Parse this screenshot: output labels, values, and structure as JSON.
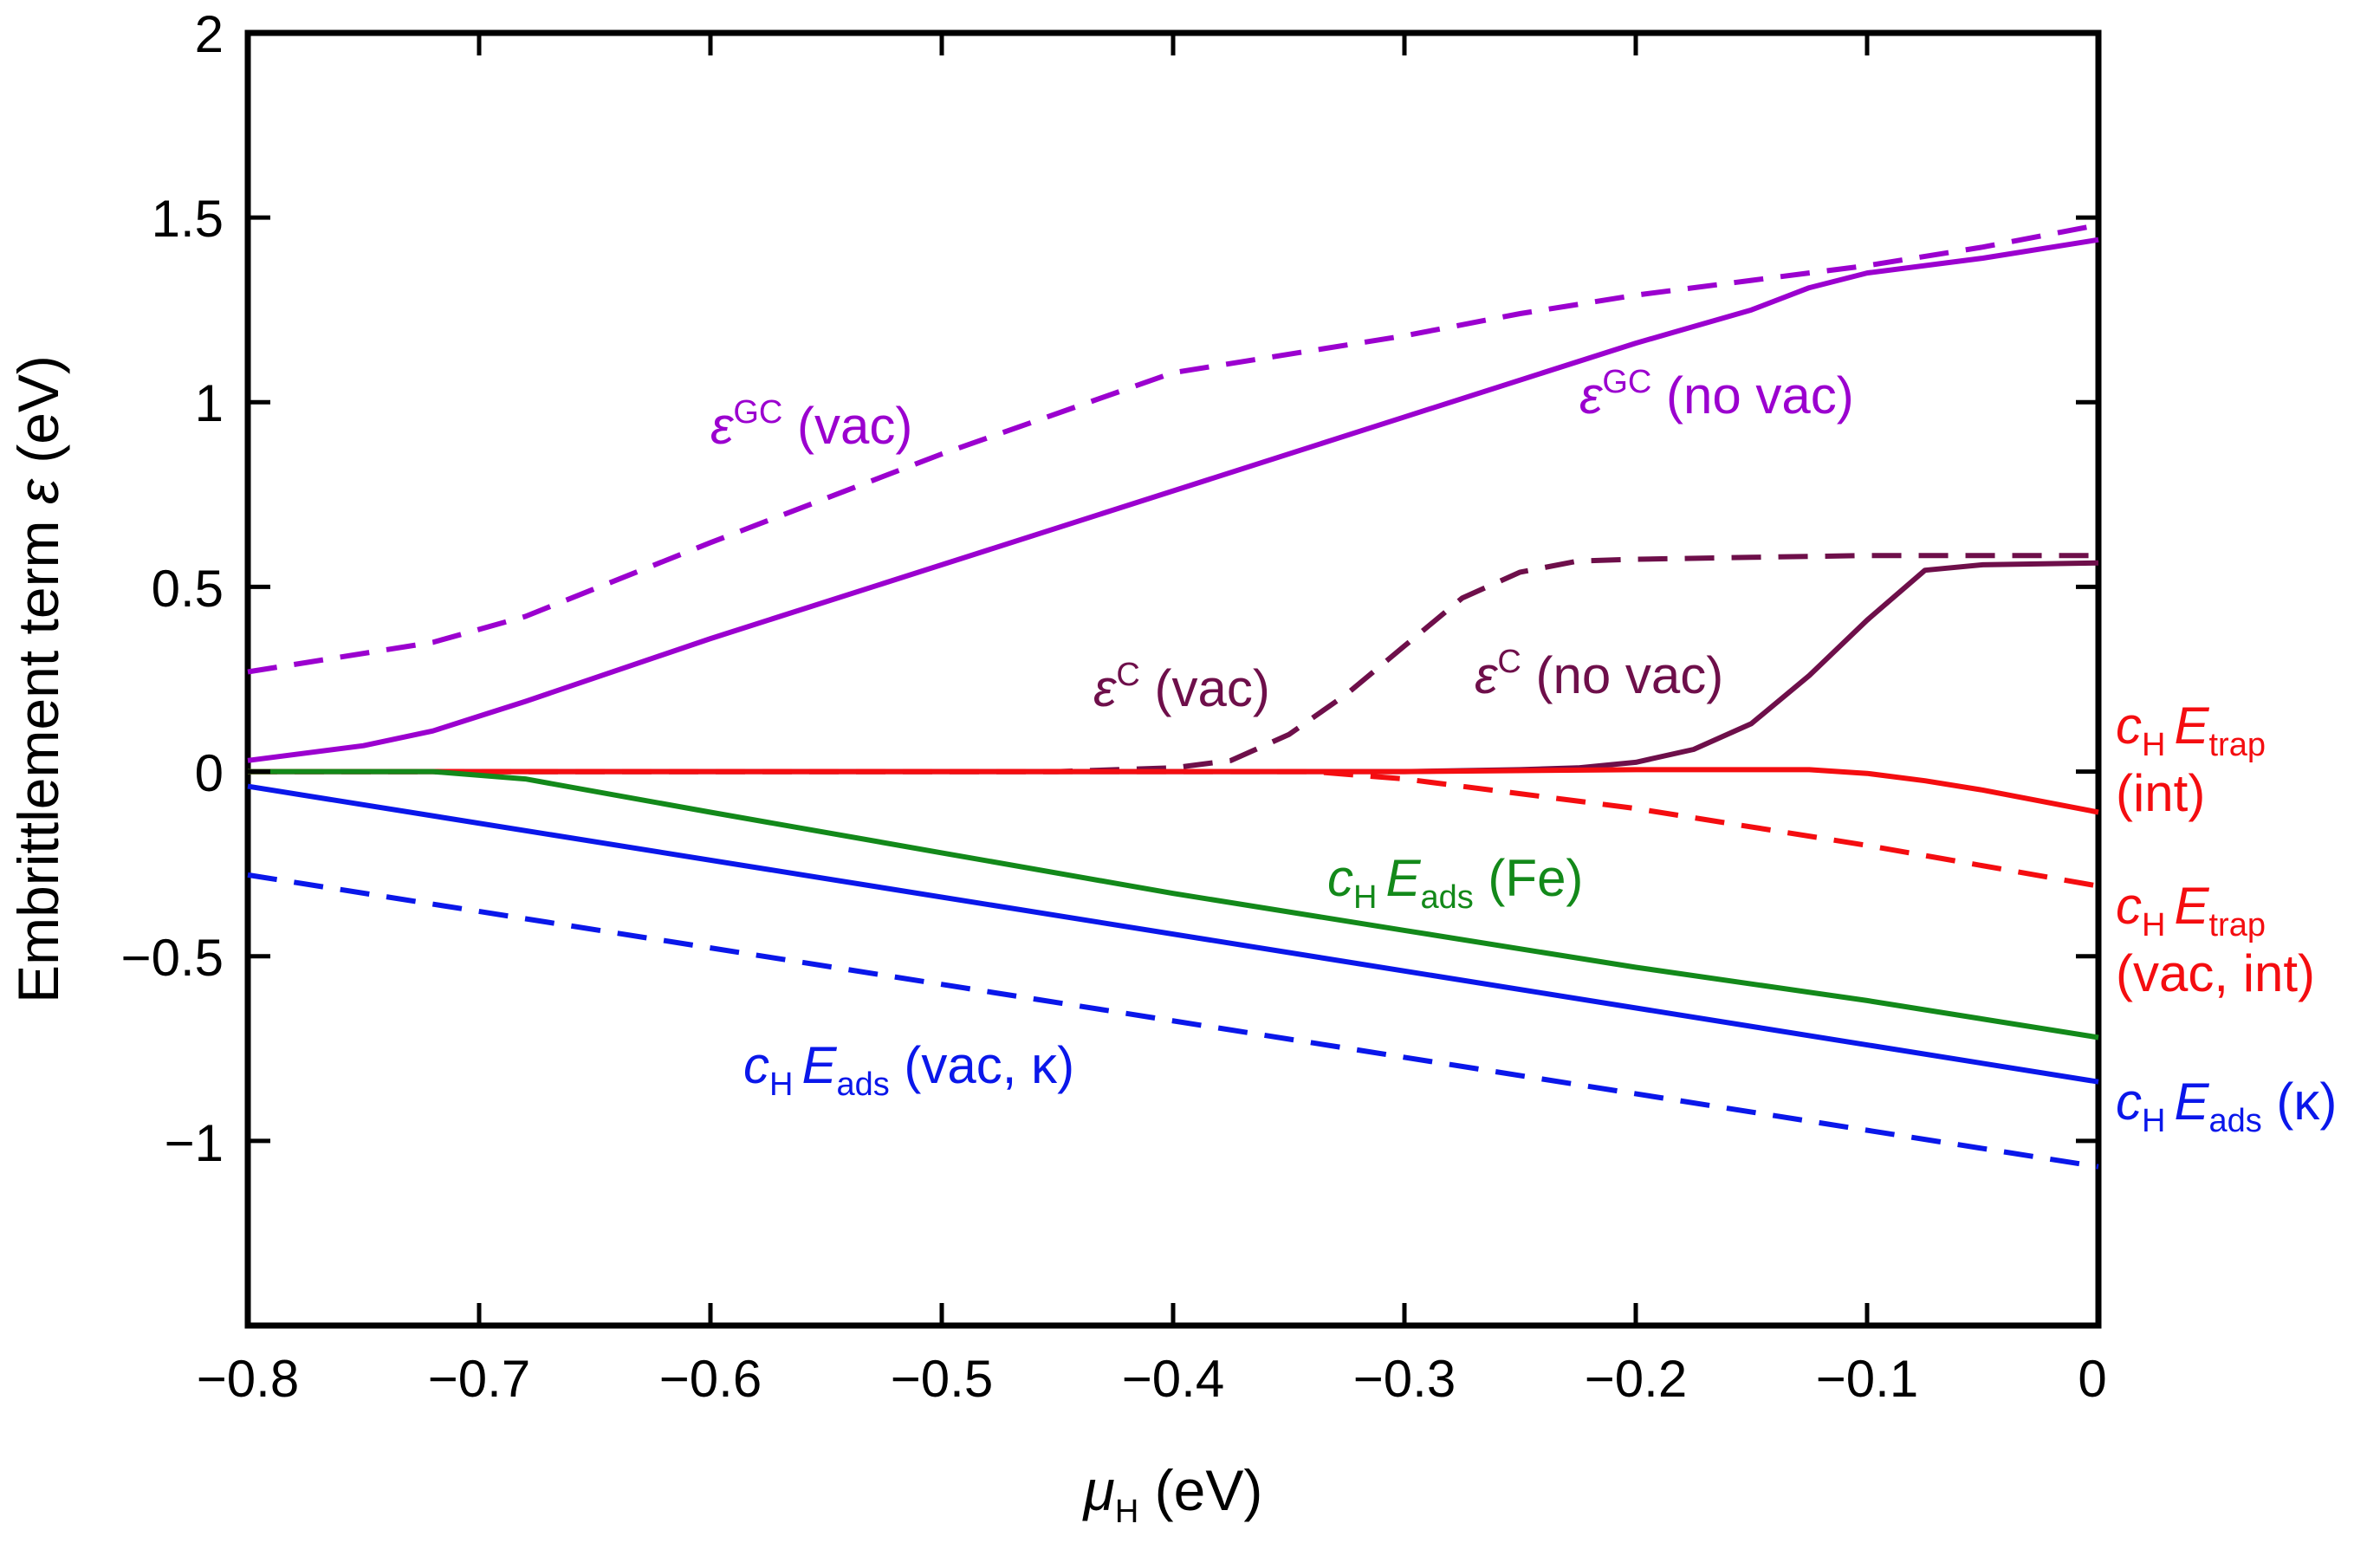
{
  "chart_data": {
    "type": "line",
    "xlabel": {
      "symbol": "μ",
      "sub": "H",
      "unit": " (eV)"
    },
    "ylabel": {
      "prefix": "Embrittlement term ",
      "symbol": "ε",
      "unit": " (eV)"
    },
    "xlim": [
      -0.8,
      0
    ],
    "ylim": [
      -1.5,
      2
    ],
    "grid": false,
    "xticks": [
      -0.8,
      -0.7,
      -0.6,
      -0.5,
      -0.4,
      -0.3,
      -0.2,
      -0.1,
      0
    ],
    "xtick_labels": [
      "−0.8",
      "−0.7",
      "−0.6",
      "−0.5",
      "−0.4",
      "−0.3",
      "−0.2",
      "−0.1",
      "0"
    ],
    "yticks": [
      2,
      1.5,
      1,
      0.5,
      0,
      -0.5,
      -1
    ],
    "ytick_labels": [
      "2",
      "1.5",
      "1",
      "0.5",
      "0",
      "−0.5",
      "−1"
    ],
    "colors": {
      "purple": "#9b00cf",
      "maroon": "#6e0f4a",
      "red": "#f40d10",
      "green": "#13891a",
      "blue": "#0a17ea"
    },
    "series": [
      {
        "id": "gc-vac",
        "color": "#9b00cf",
        "dash": true,
        "x": [
          -0.8,
          -0.72,
          -0.68,
          -0.6,
          -0.5,
          -0.4,
          -0.3,
          -0.25,
          -0.2,
          -0.15,
          -0.1,
          -0.05,
          0
        ],
        "y": [
          0.27,
          0.35,
          0.42,
          0.62,
          0.86,
          1.08,
          1.18,
          1.24,
          1.29,
          1.33,
          1.37,
          1.42,
          1.48
        ]
      },
      {
        "id": "gc-novac",
        "color": "#9b00cf",
        "dash": false,
        "x": [
          -0.8,
          -0.75,
          -0.72,
          -0.7,
          -0.68,
          -0.6,
          -0.5,
          -0.4,
          -0.3,
          -0.2,
          -0.15,
          -0.125,
          -0.1,
          -0.05,
          0
        ],
        "y": [
          0.03,
          0.07,
          0.11,
          0.15,
          0.19,
          0.36,
          0.56,
          0.76,
          0.96,
          1.16,
          1.25,
          1.31,
          1.35,
          1.39,
          1.44
        ]
      },
      {
        "id": "c-vac",
        "color": "#6e0f4a",
        "dash": true,
        "x": [
          -0.8,
          -0.45,
          -0.4,
          -0.375,
          -0.35,
          -0.325,
          -0.3,
          -0.275,
          -0.25,
          -0.225,
          -0.2,
          -0.15,
          -0.1,
          0
        ],
        "y": [
          0,
          0,
          0.01,
          0.03,
          0.1,
          0.21,
          0.34,
          0.47,
          0.54,
          0.57,
          0.575,
          0.58,
          0.585,
          0.585
        ]
      },
      {
        "id": "c-novac",
        "color": "#6e0f4a",
        "dash": false,
        "x": [
          -0.8,
          -0.3,
          -0.25,
          -0.225,
          -0.2,
          -0.175,
          -0.15,
          -0.125,
          -0.1,
          -0.075,
          -0.05,
          0
        ],
        "y": [
          0,
          0,
          0.005,
          0.01,
          0.025,
          0.06,
          0.13,
          0.26,
          0.41,
          0.545,
          0.56,
          0.565
        ]
      },
      {
        "id": "trap-int",
        "color": "#f40d10",
        "dash": false,
        "x": [
          -0.8,
          -0.3,
          -0.2,
          -0.15,
          -0.125,
          -0.1,
          -0.075,
          -0.05,
          -0.025,
          0
        ],
        "y": [
          0,
          0,
          0.005,
          0.005,
          0.005,
          -0.005,
          -0.025,
          -0.05,
          -0.08,
          -0.11
        ]
      },
      {
        "id": "trap-vacint",
        "color": "#f40d10",
        "dash": true,
        "x": [
          -0.8,
          -0.34,
          -0.3,
          -0.2,
          -0.1,
          0
        ],
        "y": [
          0,
          0,
          -0.02,
          -0.1,
          -0.2,
          -0.31
        ]
      },
      {
        "id": "ads-fe",
        "color": "#13891a",
        "dash": false,
        "x": [
          -0.8,
          -0.72,
          -0.68,
          -0.6,
          -0.5,
          -0.4,
          -0.3,
          -0.2,
          -0.1,
          0
        ],
        "y": [
          0,
          0,
          -0.02,
          -0.11,
          -0.22,
          -0.33,
          -0.43,
          -0.53,
          -0.62,
          -0.72
        ]
      },
      {
        "id": "ads-k",
        "color": "#0a17ea",
        "dash": false,
        "x": [
          -0.8,
          0
        ],
        "y": [
          -0.04,
          -0.84
        ]
      },
      {
        "id": "ads-vac-k",
        "color": "#0a17ea",
        "dash": true,
        "x": [
          -0.8,
          0
        ],
        "y": [
          -0.28,
          -1.07
        ]
      }
    ],
    "annotations": {
      "gc_vac": {
        "symbol": "ε",
        "sup": "GC",
        "text": " (vac)"
      },
      "gc_novac": {
        "symbol": "ε",
        "sup": "GC",
        "text": " (no vac)"
      },
      "c_vac": {
        "symbol": "ε",
        "sup": "C",
        "text": " (vac)"
      },
      "c_novac": {
        "symbol": "ε",
        "sup": "C",
        "text": " (no vac)"
      },
      "ads_fe": {
        "c": "c",
        "csub": "H",
        "e": "E",
        "esub": "ads",
        "text": " (Fe)"
      },
      "ads_vac_k": {
        "c": "c",
        "csub": "H",
        "e": "E",
        "esub": "ads",
        "text": " (vac, κ)"
      },
      "trap_int": {
        "c": "c",
        "csub": "H",
        "e": "E",
        "esub": "trap",
        "line2": "(int)"
      },
      "trap_vacint": {
        "c": "c",
        "csub": "H",
        "e": "E",
        "esub": "trap",
        "line2": "(vac, int)"
      },
      "ads_k": {
        "c": "c",
        "csub": "H",
        "e": "E",
        "esub": "ads",
        "text": " (κ)"
      }
    }
  }
}
